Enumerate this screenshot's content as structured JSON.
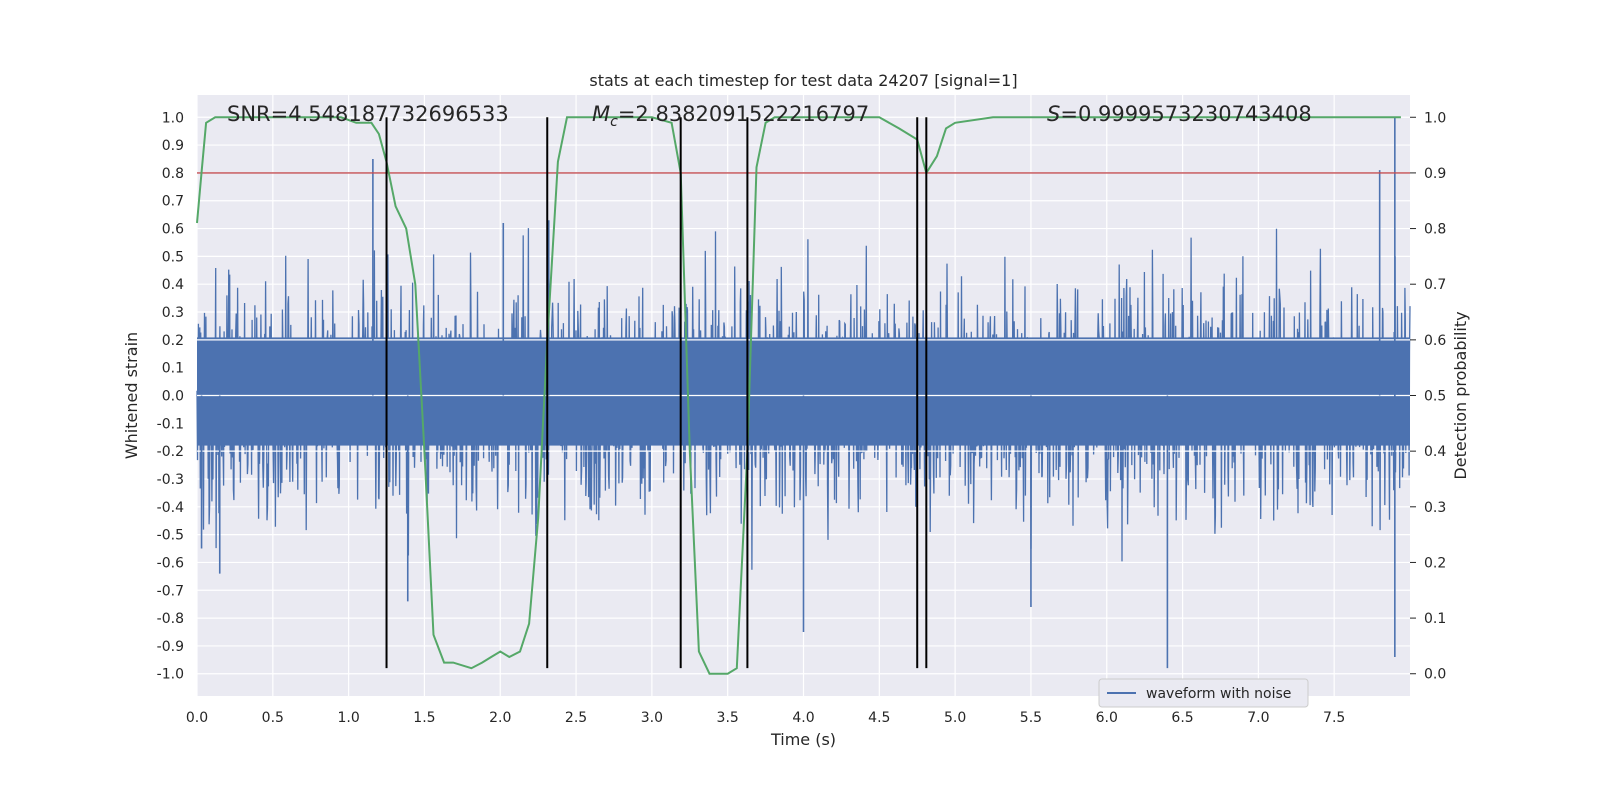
{
  "chart_data": {
    "type": "line",
    "title": "stats at each timestep for test data 24207 [signal=1]",
    "xlabel": "Time (s)",
    "ylabel": "Whitened strain",
    "y2label": "Detection probability",
    "xlim": [
      0.0,
      8.0
    ],
    "ylim": [
      -1.08,
      1.08
    ],
    "y2lim": [
      -0.04,
      1.04
    ],
    "xticks": [
      0.0,
      0.5,
      1.0,
      1.5,
      2.0,
      2.5,
      3.0,
      3.5,
      4.0,
      4.5,
      5.0,
      5.5,
      6.0,
      6.5,
      7.0,
      7.5
    ],
    "yticks": [
      -1.0,
      -0.9,
      -0.8,
      -0.7,
      -0.6,
      -0.5,
      -0.4,
      -0.3,
      -0.2,
      -0.1,
      0.0,
      0.1,
      0.2,
      0.3,
      0.4,
      0.5,
      0.6,
      0.7,
      0.8,
      0.9,
      1.0
    ],
    "y2ticks": [
      0.0,
      0.1,
      0.2,
      0.3,
      0.4,
      0.5,
      0.6,
      0.7,
      0.8,
      0.9,
      1.0
    ],
    "grid": true,
    "legend_position": "bottom-right",
    "annotations": {
      "snr": "SNR=4.548187732696533",
      "mc_symbol": "M",
      "mc_subscript": "c",
      "mc_value": "=2.8382091522216797",
      "s_symbol": "S",
      "s_value": "=0.9999573230743408"
    },
    "threshold": {
      "y": 0.8,
      "color": "#c44e52"
    },
    "vertical_markers": {
      "x": [
        1.25,
        2.31,
        3.19,
        3.63,
        4.75,
        4.81
      ],
      "ymin": -0.98,
      "ymax": 1.0,
      "color": "#000000"
    },
    "series": [
      {
        "name": "waveform with noise",
        "axis": "left",
        "color": "#4c72b0",
        "description_kind": "noise",
        "x_range": [
          0.0,
          8.0
        ],
        "envelope": 0.36,
        "peaks": [
          {
            "x": 0.03,
            "y": -0.55
          },
          {
            "x": 0.15,
            "y": -0.64
          },
          {
            "x": 1.16,
            "y": 0.85
          },
          {
            "x": 1.39,
            "y": -0.74
          },
          {
            "x": 2.02,
            "y": 0.62
          },
          {
            "x": 2.32,
            "y": 0.63
          },
          {
            "x": 4.0,
            "y": -0.85
          },
          {
            "x": 5.5,
            "y": -0.76
          },
          {
            "x": 6.4,
            "y": -0.98
          },
          {
            "x": 7.8,
            "y": 0.81
          },
          {
            "x": 7.9,
            "y": 1.0
          },
          {
            "x": 7.9,
            "y": -0.94
          }
        ]
      },
      {
        "name": "detection probability",
        "axis": "right",
        "color": "#55a868",
        "x": [
          0.0,
          0.03,
          0.06,
          0.12,
          0.25,
          0.5,
          0.75,
          0.95,
          1.05,
          1.15,
          1.2,
          1.25,
          1.31,
          1.38,
          1.44,
          1.5,
          1.56,
          1.63,
          1.69,
          1.81,
          1.88,
          1.94,
          2.0,
          2.06,
          2.13,
          2.19,
          2.25,
          2.31,
          2.38,
          2.44,
          2.5,
          2.56,
          2.63,
          2.75,
          3.0,
          3.13,
          3.19,
          3.25,
          3.31,
          3.38,
          3.44,
          3.5,
          3.56,
          3.63,
          3.69,
          3.75,
          3.81,
          3.88,
          4.0,
          4.25,
          4.5,
          4.63,
          4.75,
          4.81,
          4.88,
          4.94,
          5.0,
          5.25,
          6.0,
          7.0,
          7.94
        ],
        "values": [
          0.81,
          0.9,
          0.99,
          1.0,
          1.0,
          1.0,
          1.0,
          1.0,
          0.99,
          0.99,
          0.97,
          0.92,
          0.84,
          0.8,
          0.7,
          0.4,
          0.07,
          0.02,
          0.02,
          0.01,
          0.02,
          0.03,
          0.04,
          0.03,
          0.04,
          0.09,
          0.28,
          0.6,
          0.92,
          1.0,
          1.0,
          1.0,
          1.0,
          1.0,
          1.0,
          0.99,
          0.9,
          0.4,
          0.04,
          0.0,
          0.0,
          0.0,
          0.01,
          0.4,
          0.91,
          0.99,
          1.0,
          1.0,
          1.0,
          1.0,
          1.0,
          0.98,
          0.96,
          0.9,
          0.93,
          0.98,
          0.99,
          1.0,
          1.0,
          1.0,
          1.0
        ]
      }
    ]
  }
}
